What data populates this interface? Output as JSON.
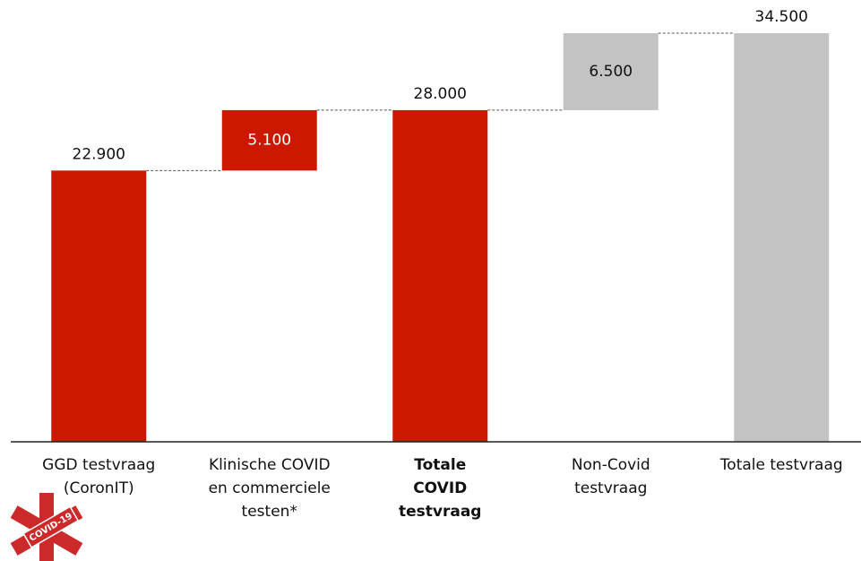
{
  "chart_data": {
    "type": "waterfall",
    "categories": [
      [
        "GGD testvraag",
        "(CoronIT)"
      ],
      [
        "Klinische COVID",
        "en commerciele",
        "testen*"
      ],
      [
        "Totale",
        "COVID",
        "testvraag"
      ],
      [
        "Non-Covid",
        "testvraag"
      ],
      [
        "Totale testvraag"
      ]
    ],
    "category_bold": [
      false,
      false,
      true,
      false,
      false
    ],
    "values": [
      22900,
      5100,
      28000,
      6500,
      34500
    ],
    "value_labels": [
      "22.900",
      "5.100",
      "28.000",
      "6.500",
      "34.500"
    ],
    "is_total": [
      true,
      false,
      true,
      false,
      true
    ],
    "colors": [
      "#cc1800",
      "#cc1800",
      "#cc1800",
      "#c3c3c3",
      "#c3c3c3"
    ],
    "label_colors": [
      "#111111",
      "#ffffff",
      "#111111",
      "#111111",
      "#111111"
    ],
    "ylim": [
      0,
      34500
    ],
    "logo_text": "COVID-19"
  }
}
